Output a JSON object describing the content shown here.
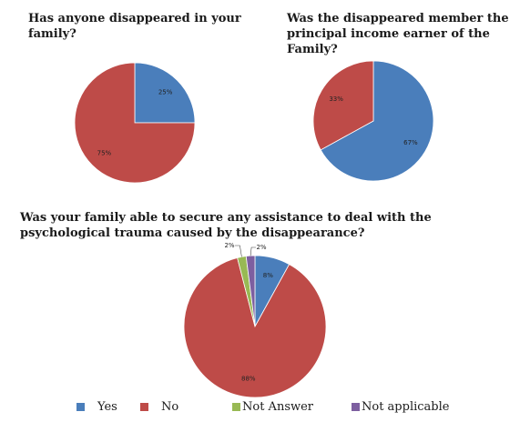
{
  "colors": {
    "yes": "#4a7ebb",
    "no": "#be4b48",
    "not_answer": "#98b954",
    "not_applicable": "#7d5fa0"
  },
  "chart_data": [
    {
      "type": "pie",
      "title": "Has anyone disappeared in your family?",
      "slices": [
        {
          "label": "Yes",
          "value": 25,
          "data_label": "25%"
        },
        {
          "label": "No",
          "value": 75,
          "data_label": "75%"
        }
      ]
    },
    {
      "type": "pie",
      "title": "Was the disappeared member the principal income earner of the Family?",
      "slices": [
        {
          "label": "Yes",
          "value": 67,
          "data_label": "67%"
        },
        {
          "label": "No",
          "value": 33,
          "data_label": "33%"
        }
      ]
    },
    {
      "type": "pie",
      "title": "Was your family able to secure any assistance to deal with the psychological trauma caused by the disappearance?",
      "slices": [
        {
          "label": "Yes",
          "value": 8,
          "data_label": "8%"
        },
        {
          "label": "No",
          "value": 88,
          "data_label": "88%"
        },
        {
          "label": "Not Answer",
          "value": 2,
          "data_label": "2%"
        },
        {
          "label": "Not applicable",
          "value": 2,
          "data_label": "2%"
        }
      ]
    }
  ],
  "legend": {
    "placement": "bottom",
    "items": [
      {
        "label": "Yes",
        "color": "#4a7ebb"
      },
      {
        "label": "No",
        "color": "#be4b48"
      },
      {
        "label": "Not Answer",
        "color": "#98b954"
      },
      {
        "label": "Not applicable",
        "color": "#7d5fa0"
      }
    ]
  }
}
